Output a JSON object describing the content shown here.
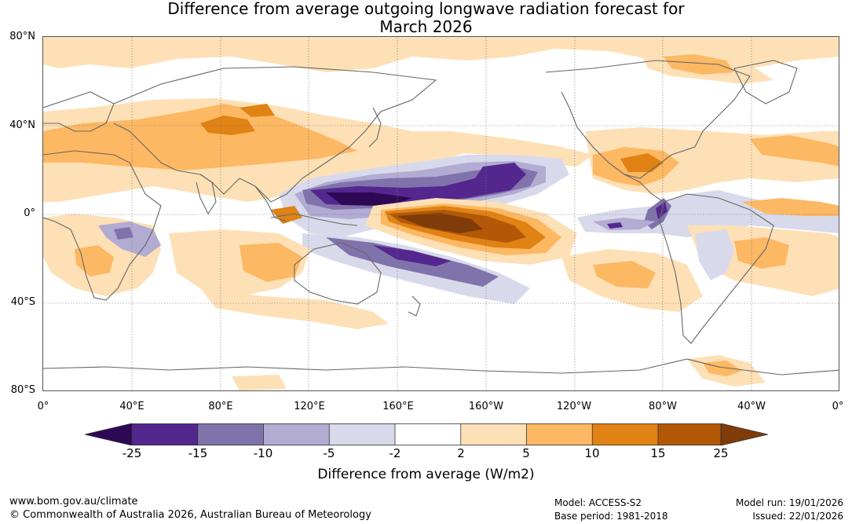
{
  "title": {
    "line1": "Difference from average outgoing longwave radiation forecast for",
    "line2": "March 2026"
  },
  "map": {
    "lat_labels": [
      "80°N",
      "40°N",
      "0°",
      "40°S",
      "80°S"
    ],
    "lon_labels": [
      "0°",
      "40°E",
      "80°E",
      "120°E",
      "160°E",
      "160°W",
      "120°W",
      "80°W",
      "40°W",
      "0°"
    ]
  },
  "colorbar": {
    "title": "Difference from average (W/m2)",
    "ticks": [
      "-25",
      "-15",
      "-10",
      "-5",
      "-2",
      "2",
      "5",
      "10",
      "15",
      "25"
    ],
    "colors": {
      "below_25": "#2e0854",
      "n25_n15": "#54278f",
      "n15_n10": "#8073ac",
      "n10_n5": "#b2abd2",
      "n5_n2": "#d8daeb",
      "n2_p2": "#ffffff",
      "p2_p5": "#fee0b6",
      "p5_p10": "#fdb863",
      "p10_p15": "#e08214",
      "p15_p25": "#b35806",
      "above_25": "#7f3b08"
    }
  },
  "footer": {
    "website": "www.bom.gov.au/climate",
    "copyright": "© Commonwealth of Australia 2026, Australian Bureau of Meteorology",
    "model": "Model: ACCESS-S2",
    "base_period": "Base period: 1981-2018",
    "model_run": "Model run: 19/01/2026",
    "issued": "Issued: 22/01/2026"
  }
}
